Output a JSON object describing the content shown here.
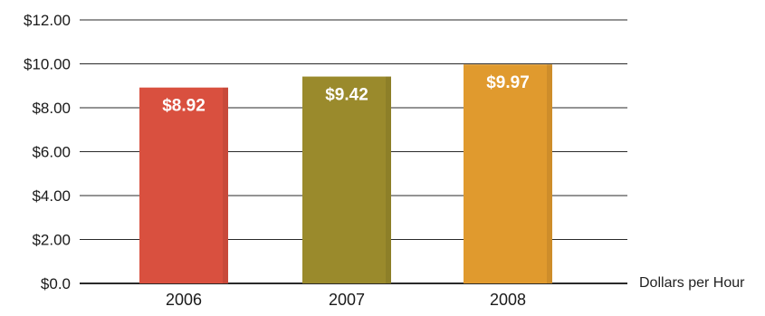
{
  "chart_data": {
    "type": "bar",
    "categories": [
      "2006",
      "2007",
      "2008"
    ],
    "values": [
      8.92,
      9.42,
      9.97
    ],
    "value_labels": [
      "$8.92",
      "$9.42",
      "$9.97"
    ],
    "ylim": [
      0,
      12
    ],
    "yticks": [
      {
        "value": 0,
        "label": "$0.0"
      },
      {
        "value": 2,
        "label": "$2.00"
      },
      {
        "value": 4,
        "label": "$4.00"
      },
      {
        "value": 6,
        "label": "$6.00"
      },
      {
        "value": 8,
        "label": "$8.00"
      },
      {
        "value": 10,
        "label": "$10.00"
      },
      {
        "value": 12,
        "label": "$12.00"
      }
    ],
    "unit_label": "Dollars per Hour",
    "grid": true,
    "bar_colors": [
      "#d9503f",
      "#9a8a2c",
      "#e09a2e"
    ],
    "grid_color": "#2a2a2a",
    "value_label_color": "#ffffff"
  }
}
